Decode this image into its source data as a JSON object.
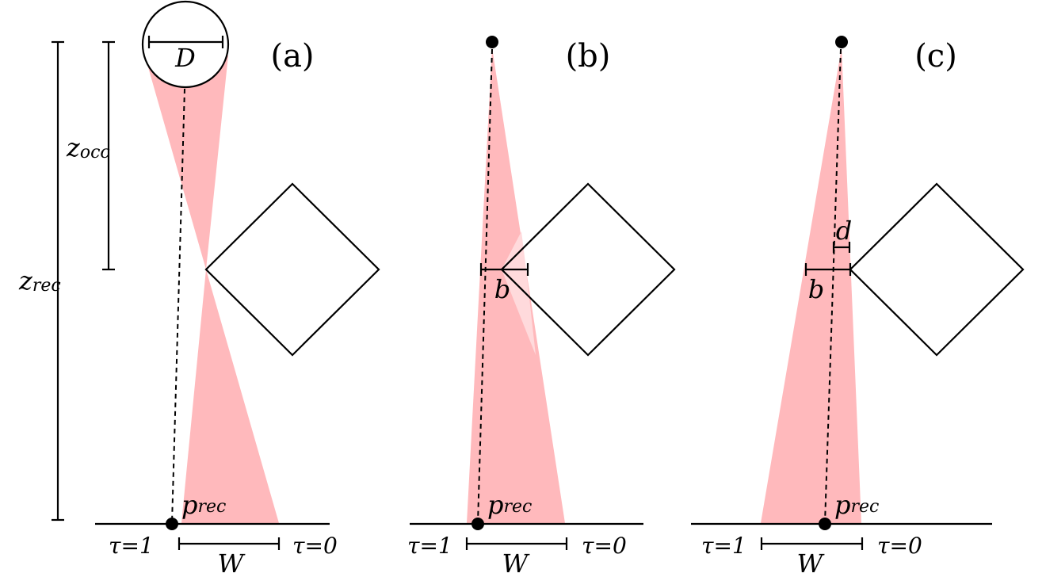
{
  "panels": [
    {
      "label": "(a)",
      "source_label": "D",
      "receiver_label": "p",
      "receiver_sub": "rec",
      "tau_left": "τ=1",
      "tau_right": "τ=0",
      "width_label": "W"
    },
    {
      "label": "(b)",
      "receiver_label": "p",
      "receiver_sub": "rec",
      "b_label": "b",
      "tau_left": "τ=1",
      "tau_right": "τ=0",
      "width_label": "W"
    },
    {
      "label": "(c)",
      "receiver_label": "p",
      "receiver_sub": "rec",
      "b_label": "b",
      "d_label": "d",
      "tau_left": "τ=1",
      "tau_right": "τ=0",
      "width_label": "W"
    }
  ],
  "z_occ": {
    "main": "z",
    "sub": "occ"
  },
  "z_rec": {
    "main": "z",
    "sub": "rec"
  },
  "colors": {
    "cone": "#ffb9bc",
    "cone_light": "#ffdadc",
    "ink": "#000000"
  }
}
